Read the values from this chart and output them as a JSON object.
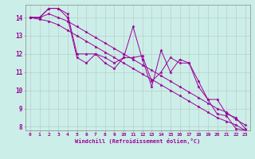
{
  "xlabel": "Windchill (Refroidissement éolien,°C)",
  "bg_color": "#cceee8",
  "line_color": "#990099",
  "grid_color": "#aaaaaa",
  "xlim": [
    -0.5,
    23.5
  ],
  "ylim": [
    7.8,
    14.7
  ],
  "xticks": [
    0,
    1,
    2,
    3,
    4,
    5,
    6,
    7,
    8,
    9,
    10,
    11,
    12,
    13,
    14,
    15,
    16,
    17,
    18,
    19,
    20,
    21,
    22,
    23
  ],
  "yticks": [
    8,
    9,
    10,
    11,
    12,
    13,
    14
  ],
  "series": [
    [
      14.0,
      14.0,
      14.5,
      14.5,
      14.0,
      11.8,
      11.5,
      12.0,
      11.5,
      11.2,
      11.8,
      13.5,
      11.7,
      10.2,
      12.2,
      11.0,
      11.7,
      11.5,
      10.2,
      9.5,
      8.7,
      8.6,
      7.9,
      7.8
    ],
    [
      14.0,
      14.0,
      14.5,
      14.5,
      14.2,
      12.0,
      12.0,
      12.0,
      11.8,
      11.5,
      11.8,
      11.8,
      11.9,
      10.5,
      11.0,
      11.8,
      11.5,
      11.5,
      10.5,
      9.5,
      9.5,
      8.7,
      8.5,
      7.9
    ],
    [
      14.0,
      13.9,
      13.8,
      13.6,
      13.3,
      13.0,
      12.7,
      12.4,
      12.1,
      11.8,
      11.5,
      11.2,
      10.9,
      10.6,
      10.3,
      10.0,
      9.7,
      9.4,
      9.1,
      8.8,
      8.5,
      8.3,
      8.1,
      7.8
    ],
    [
      14.0,
      14.0,
      14.2,
      14.0,
      13.8,
      13.5,
      13.2,
      12.9,
      12.6,
      12.3,
      12.0,
      11.7,
      11.4,
      11.1,
      10.8,
      10.5,
      10.2,
      9.9,
      9.6,
      9.3,
      9.0,
      8.8,
      8.4,
      8.1
    ]
  ]
}
